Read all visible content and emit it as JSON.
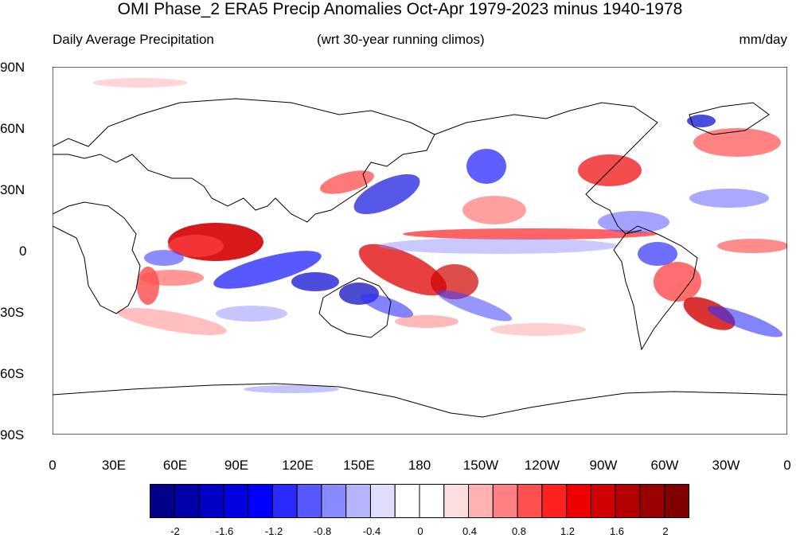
{
  "title": "OMI Phase_2 ERA5 Precip Anomalies Oct-Apr 1979-2023 minus 1940-1978",
  "subtitle_left": "Daily Average Precipitation",
  "subtitle_center": "(wrt 30-year running climos)",
  "subtitle_right": "mm/day",
  "lat_labels": [
    "90N",
    "60N",
    "30N",
    "0",
    "30S",
    "60S",
    "90S"
  ],
  "lon_labels": [
    "0",
    "30E",
    "60E",
    "90E",
    "120E",
    "150E",
    "180",
    "150W",
    "120W",
    "90W",
    "60W",
    "30W",
    "0"
  ],
  "colorbar": {
    "colors": [
      "#00008b",
      "#0000a8",
      "#0000c4",
      "#0000e0",
      "#0000ff",
      "#2a2aff",
      "#5858ff",
      "#8888ff",
      "#b4b4ff",
      "#dedefc",
      "#ffffff",
      "#ffffff",
      "#fcdede",
      "#ffb0b0",
      "#ff8080",
      "#ff5050",
      "#ff2020",
      "#ee0000",
      "#d00000",
      "#b40000",
      "#980000",
      "#800000"
    ],
    "tick_labels": [
      "-2",
      "-1.6",
      "-1.2",
      "-0.8",
      "-0.4",
      "0",
      "0.4",
      "0.8",
      "1.2",
      "1.6",
      "2"
    ]
  }
}
